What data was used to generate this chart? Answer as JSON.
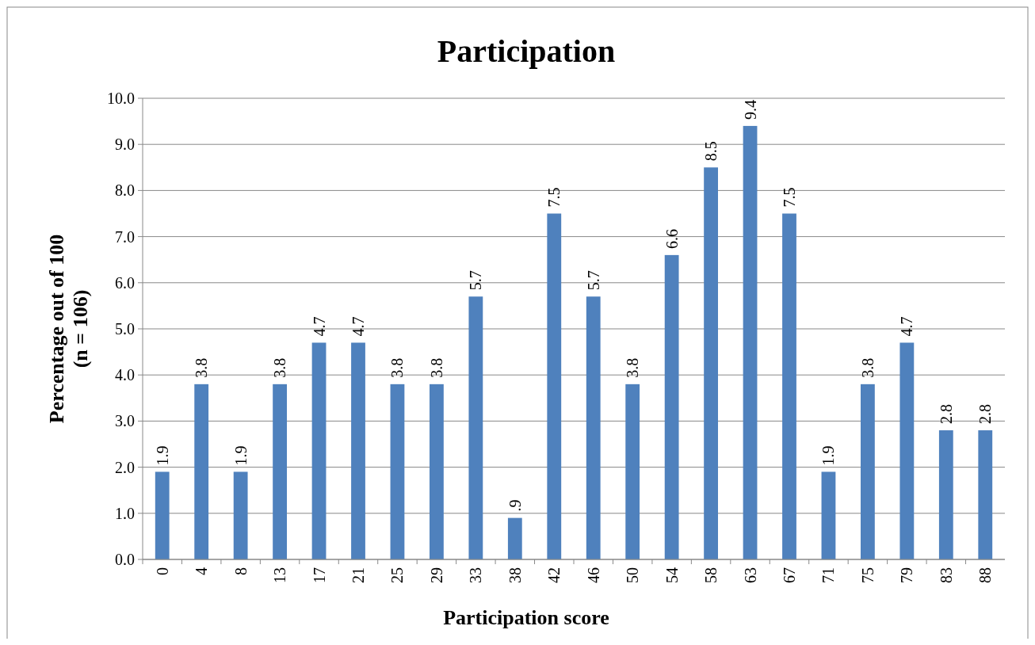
{
  "chart_data": {
    "type": "bar",
    "title": "Participation",
    "xlabel": "Participation score",
    "ylabel": "Percentage out of 100\n(n = 106)",
    "categories": [
      "0",
      "4",
      "8",
      "13",
      "17",
      "21",
      "25",
      "29",
      "33",
      "38",
      "42",
      "46",
      "50",
      "54",
      "58",
      "63",
      "67",
      "71",
      "75",
      "79",
      "83",
      "88"
    ],
    "values": [
      1.9,
      3.8,
      1.9,
      3.8,
      4.7,
      4.7,
      3.8,
      3.8,
      5.7,
      0.9,
      7.5,
      5.7,
      3.8,
      6.6,
      8.5,
      9.4,
      7.5,
      1.9,
      3.8,
      4.7,
      2.8,
      2.8
    ],
    "value_labels": [
      "1.9",
      "3.8",
      "1.9",
      "3.8",
      "4.7",
      "4.7",
      "3.8",
      "3.8",
      "5.7",
      ".9",
      "7.5",
      "5.7",
      "3.8",
      "6.6",
      "8.5",
      "9.4",
      "7.5",
      "1.9",
      "3.8",
      "4.7",
      "2.8",
      "2.8"
    ],
    "color": "#4f81bd",
    "ylim": [
      0,
      10
    ],
    "yticks": [
      {
        "value": 0,
        "label": "0.0"
      },
      {
        "value": 1,
        "label": "1.0"
      },
      {
        "value": 2,
        "label": "2.0"
      },
      {
        "value": 3,
        "label": "3.0"
      },
      {
        "value": 4,
        "label": "4.0"
      },
      {
        "value": 5,
        "label": "5.0"
      },
      {
        "value": 6,
        "label": "6.0"
      },
      {
        "value": 7,
        "label": "7.0"
      },
      {
        "value": 8,
        "label": "8.0"
      },
      {
        "value": 9,
        "label": "9.0"
      },
      {
        "value": 10,
        "label": "10.0"
      }
    ],
    "grid": "y"
  }
}
